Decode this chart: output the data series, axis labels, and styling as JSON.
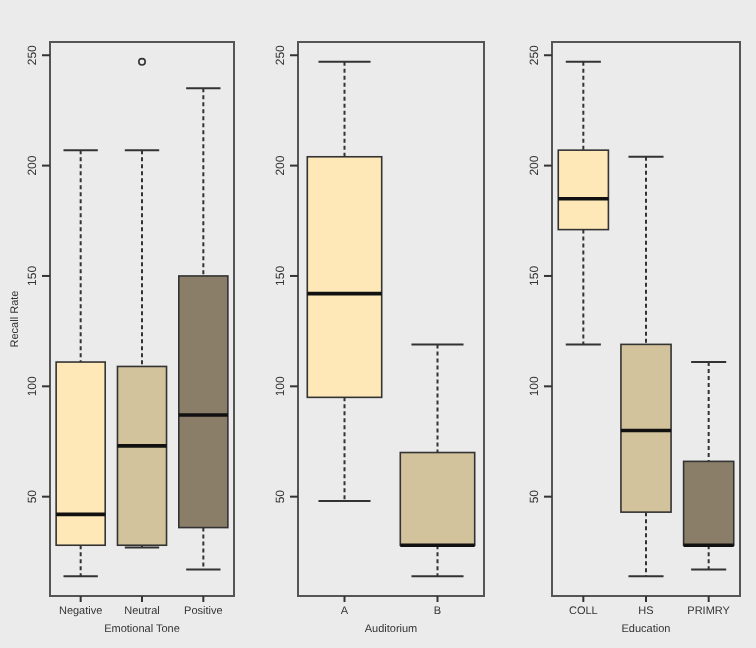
{
  "chart_data": [
    {
      "type": "box",
      "xlabel": "Emotional Tone",
      "ylabel": "Recall Rate",
      "categories": [
        "Negative",
        "Neutral",
        "Positive"
      ],
      "colors": [
        "#ffe8b8",
        "#d3c39c",
        "#8a7e69"
      ],
      "ylim": [
        5,
        256
      ],
      "yticks": [
        50,
        100,
        150,
        200,
        250
      ],
      "boxes": [
        {
          "low": 14,
          "q1": 28,
          "median": 42,
          "q3": 111,
          "high": 207
        },
        {
          "low": 27,
          "q1": 28,
          "median": 73,
          "q3": 109,
          "high": 207,
          "outliers": [
            247
          ]
        },
        {
          "low": 17,
          "q1": 36,
          "median": 87,
          "q3": 150,
          "high": 235
        }
      ]
    },
    {
      "type": "box",
      "xlabel": "Auditorium",
      "categories": [
        "A",
        "B"
      ],
      "colors": [
        "#ffe8b8",
        "#d3c39c"
      ],
      "ylim": [
        5,
        256
      ],
      "yticks": [
        50,
        100,
        150,
        200,
        250
      ],
      "boxes": [
        {
          "low": 48,
          "q1": 95,
          "median": 142,
          "q3": 204,
          "high": 247
        },
        {
          "low": 14,
          "q1": 28,
          "median": 28,
          "q3": 70,
          "high": 119
        }
      ]
    },
    {
      "type": "box",
      "xlabel": "Education",
      "categories": [
        "COLL",
        "HS",
        "PRIMRY"
      ],
      "colors": [
        "#ffe8b8",
        "#d3c39c",
        "#8a7e69"
      ],
      "ylim": [
        5,
        256
      ],
      "yticks": [
        50,
        100,
        150,
        200,
        250
      ],
      "boxes": [
        {
          "low": 119,
          "q1": 171,
          "median": 185,
          "q3": 207,
          "high": 247
        },
        {
          "low": 14,
          "q1": 43,
          "median": 80,
          "q3": 119,
          "high": 204
        },
        {
          "low": 17,
          "q1": 28,
          "median": 28,
          "q3": 66,
          "high": 111
        }
      ]
    }
  ]
}
